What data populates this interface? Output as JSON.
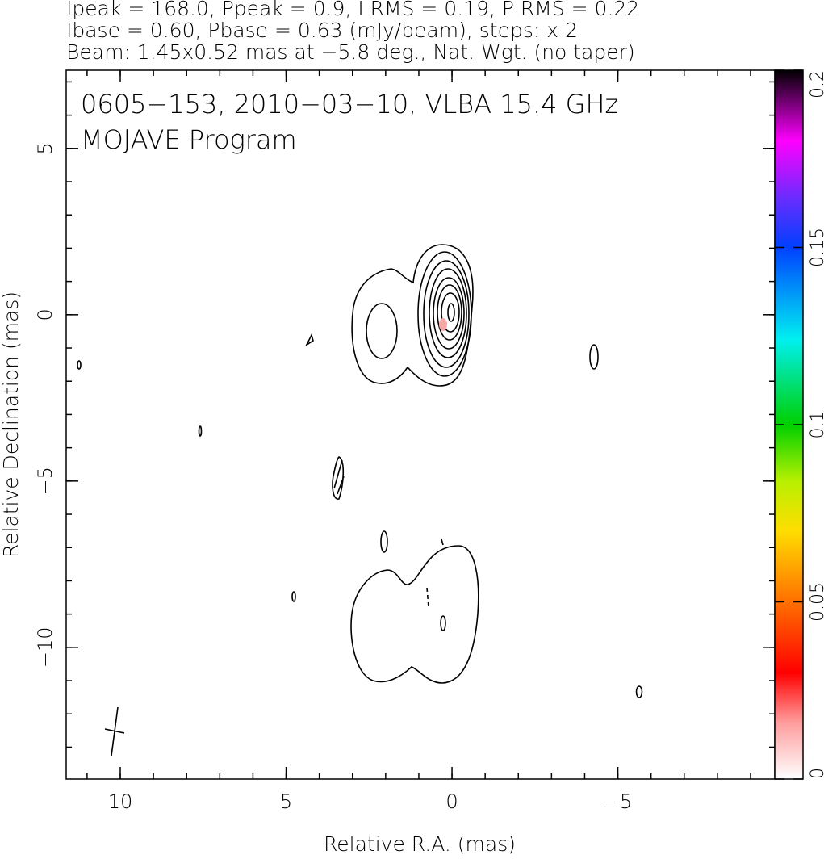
{
  "chart_data": {
    "type": "contour",
    "header": [
      "Ipeak = 168.0, Ppeak = 0.9, I RMS = 0.19, P RMS = 0.22",
      "Ibase = 0.60, Pbase = 0.63 (mJy/beam), steps: x 2",
      "Beam: 1.45x0.52 mas at −5.8 deg., Nat. Wgt. (no taper)"
    ],
    "title": "0605−153, 2010−03−10, VLBA 15.4 GHz",
    "subtitle": "MOJAVE Program",
    "x_label": "Relative R.A. (mas)",
    "y_label": "Relative Declination (mas)",
    "xlim": [
      11.63,
      -9.73
    ],
    "ylim": [
      -13.96,
      7.35
    ],
    "xticks": [
      10,
      5,
      0,
      {
        "value": -5,
        "label": "−5"
      }
    ],
    "yticks": [
      {
        "value": -10,
        "label": "−10"
      },
      {
        "value": -5,
        "label": "−5"
      },
      0,
      5
    ],
    "colorbar": {
      "lim": [
        0,
        0.2
      ],
      "ticks": [
        0,
        0.05,
        0.1,
        0.15,
        0.2
      ]
    }
  }
}
